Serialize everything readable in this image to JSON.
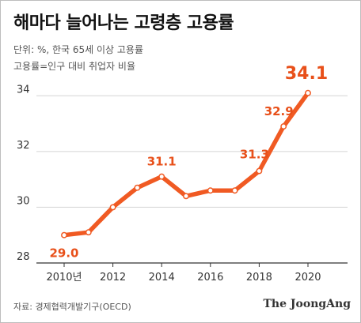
{
  "header": {
    "title": "해마다 늘어나는 고령층 고용률",
    "unit_note": "단위: %, 한국 65세 이상 고용률",
    "definition_note": "고용률=인구 대비 취업자 비율"
  },
  "footer": {
    "source": "자료: 경제협력개발기구(OECD)",
    "brand": "The JoongAng"
  },
  "colors": {
    "line": "#f05a23",
    "point": "#ffffff",
    "grid": "#d4d4d4",
    "axis": "#333333",
    "tick_text": "#333333",
    "label_text": "#e8501a"
  },
  "chart_data": {
    "type": "line",
    "title": "해마다 늘어나는 고령층 고용률",
    "xlabel": "",
    "ylabel": "",
    "x": [
      2010,
      2011,
      2012,
      2013,
      2014,
      2015,
      2016,
      2017,
      2018,
      2019,
      2020
    ],
    "series": [
      {
        "values": [
          29.0,
          29.1,
          30.0,
          30.7,
          31.1,
          30.4,
          30.6,
          30.6,
          31.3,
          32.9,
          34.1
        ]
      }
    ],
    "ylim": [
      28,
      35
    ],
    "yticks": [
      28,
      30,
      32,
      34
    ],
    "xticks": [
      {
        "x": 2010,
        "label": "2010년"
      },
      {
        "x": 2012,
        "label": "2012"
      },
      {
        "x": 2014,
        "label": "2014"
      },
      {
        "x": 2016,
        "label": "2016"
      },
      {
        "x": 2018,
        "label": "2018"
      },
      {
        "x": 2020,
        "label": "2020"
      }
    ],
    "data_labels": [
      {
        "x": 2010,
        "text": "29.0"
      },
      {
        "x": 2014,
        "text": "31.1"
      },
      {
        "x": 2018,
        "text": "31.3"
      },
      {
        "x": 2019,
        "text": "32.9"
      },
      {
        "x": 2020,
        "text": "34.1"
      }
    ],
    "grid": "horizontal",
    "legend": "none"
  }
}
